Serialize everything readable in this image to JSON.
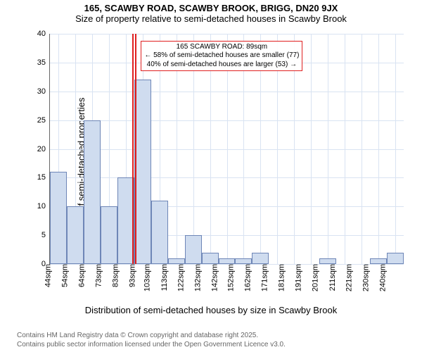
{
  "title_line1": "165, SCAWBY ROAD, SCAWBY BROOK, BRIGG, DN20 9JX",
  "title_line2": "Size of property relative to semi-detached houses in Scawby Brook",
  "title_fontsize": 13,
  "subtitle_fontsize": 13,
  "chart": {
    "type": "histogram",
    "ylabel": "Number of semi-detached properties",
    "xlabel": "Distribution of semi-detached houses by size in Scawby Brook",
    "label_fontsize": 13,
    "tick_fontsize": 11,
    "ylim": [
      0,
      40
    ],
    "ytick_step": 5,
    "background_color": "#ffffff",
    "grid_color": "#d9e3f2",
    "axis_color": "#666666",
    "bar_fill": "#cfdcef",
    "bar_border": "#6e86b7",
    "highlight_color": "#e02020",
    "categories": [
      "44sqm",
      "54sqm",
      "64sqm",
      "73sqm",
      "83sqm",
      "93sqm",
      "103sqm",
      "113sqm",
      "122sqm",
      "132sqm",
      "142sqm",
      "152sqm",
      "162sqm",
      "171sqm",
      "181sqm",
      "191sqm",
      "201sqm",
      "211sqm",
      "221sqm",
      "230sqm",
      "240sqm"
    ],
    "values": [
      16,
      10,
      25,
      10,
      15,
      32,
      11,
      1,
      5,
      2,
      1,
      1,
      2,
      0,
      0,
      0,
      1,
      0,
      0,
      1,
      2
    ],
    "highlight_index": 5,
    "bar_width": 1.0,
    "callout": {
      "line1": "165 SCAWBY ROAD: 89sqm",
      "line2": "← 58% of semi-detached houses are smaller (77)",
      "line3": "40% of semi-detached houses are larger (53) →",
      "border_color": "#e02020",
      "fontsize": 10
    }
  },
  "footer": {
    "line1": "Contains HM Land Registry data © Crown copyright and database right 2025.",
    "line2": "Contains public sector information licensed under the Open Government Licence v3.0.",
    "color": "#666666",
    "fontsize": 10
  }
}
